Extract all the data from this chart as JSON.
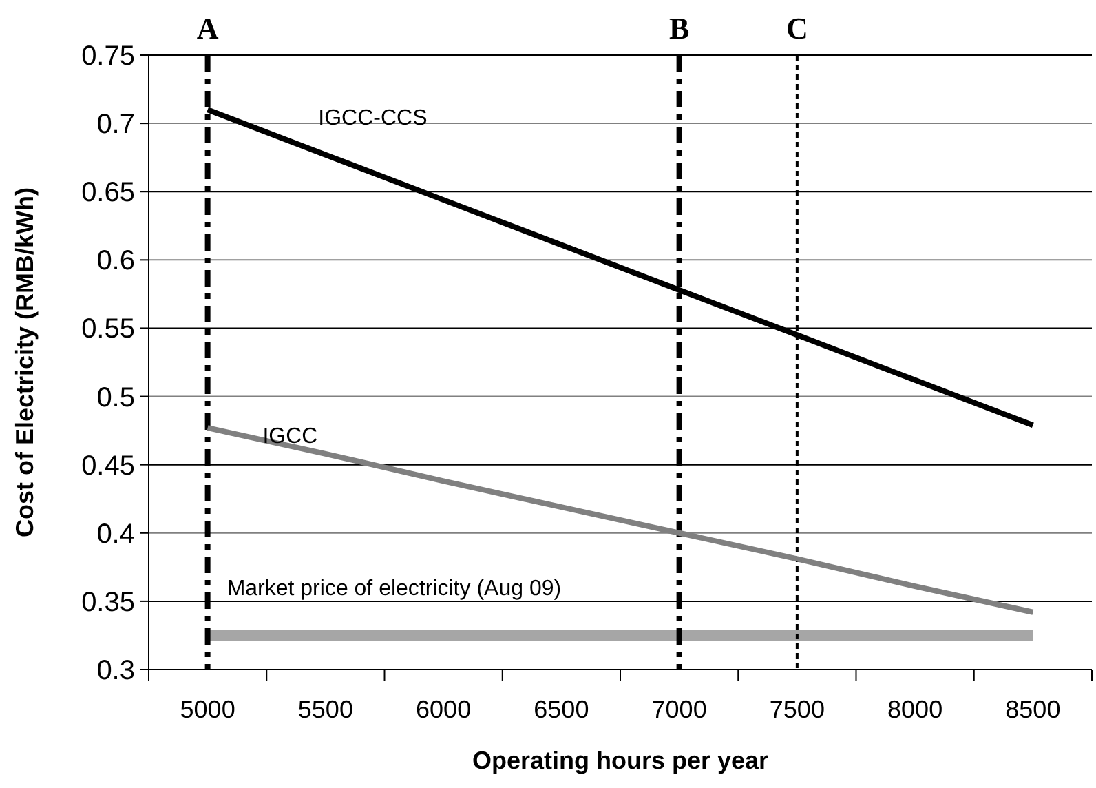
{
  "chart_data": {
    "type": "line",
    "xlabel": "Operating hours per year",
    "ylabel": "Cost of Electricity (RMB/kWh)",
    "categories": [
      "5000",
      "5500",
      "6000",
      "6500",
      "7000",
      "7500",
      "8000",
      "8500"
    ],
    "series": [
      {
        "name": "IGCC-CCS",
        "color": "#000000",
        "values": [
          0.71,
          0.677,
          0.644,
          0.611,
          0.578,
          0.545,
          0.512,
          0.479
        ]
      },
      {
        "name": "IGCC",
        "color": "#808080",
        "values": [
          0.477,
          0.458,
          0.438,
          0.419,
          0.4,
          0.381,
          0.361,
          0.342
        ]
      }
    ],
    "ylim": [
      0.3,
      0.75
    ],
    "yticks": [
      0.3,
      0.35,
      0.4,
      0.45,
      0.5,
      0.55,
      0.6,
      0.65,
      0.7,
      0.75
    ],
    "grid": "y",
    "marker": "none",
    "line_style": "solid",
    "ref_lines": [
      {
        "axis": "y",
        "value": 0.325,
        "label": "Market price of electricity (Aug 09)",
        "color": "#a6a6a6"
      },
      {
        "axis": "x",
        "value": "5000",
        "label": "A",
        "color": "#000000",
        "line_style": "dashed"
      },
      {
        "axis": "x",
        "value": "7000",
        "label": "B",
        "color": "#000000",
        "line_style": "dashed"
      },
      {
        "axis": "x",
        "value": "7500",
        "label": "C",
        "color": "#000000",
        "line_style": "dotted"
      }
    ]
  }
}
